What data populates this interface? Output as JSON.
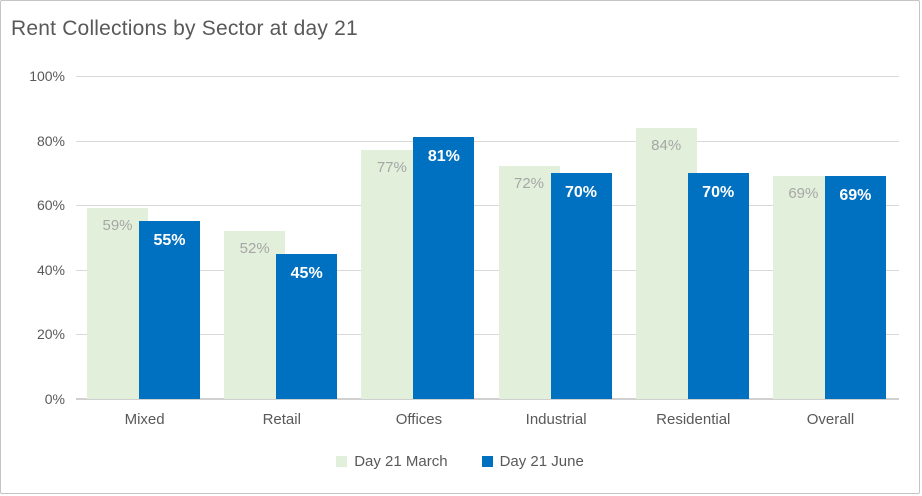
{
  "chart_data": {
    "type": "bar",
    "title": "Rent Collections by Sector at day 21",
    "categories": [
      "Mixed",
      "Retail",
      "Offices",
      "Industrial",
      "Residential",
      "Overall"
    ],
    "series": [
      {
        "name": "Day 21 March",
        "color": "#e2efda",
        "label_color": "#a6a6a6",
        "values": [
          59,
          52,
          77,
          72,
          84,
          69
        ]
      },
      {
        "name": "Day 21 June",
        "color": "#0070c0",
        "label_color": "#ffffff",
        "values": [
          55,
          45,
          81,
          70,
          70,
          69
        ]
      }
    ],
    "value_suffix": "%",
    "ylabel": "",
    "xlabel": "",
    "ylim": [
      0,
      100
    ],
    "yticks": [
      {
        "label": "100%",
        "value": 100
      },
      {
        "label": "80%",
        "value": 80
      },
      {
        "label": "60%",
        "value": 60
      },
      {
        "label": "40%",
        "value": 40
      },
      {
        "label": "20%",
        "value": 20
      },
      {
        "label": "0%",
        "value": 0
      }
    ],
    "grid": true,
    "legend_position": "bottom"
  },
  "colors": {
    "title_text": "#595959",
    "axis_text": "#595959",
    "gridline": "#d9d9d9",
    "chart_border": "#c4c4c4",
    "background": "#ffffff"
  }
}
